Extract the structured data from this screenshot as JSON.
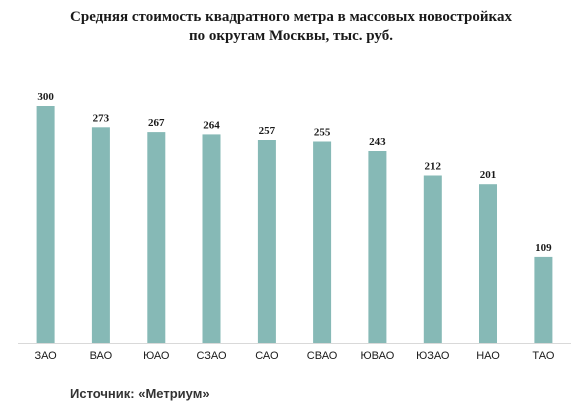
{
  "chart_data": {
    "type": "bar",
    "title_lines": [
      "Средняя стоимость  квадратного  метра в массовых новостройках",
      "по округам Москвы, тыс. руб."
    ],
    "categories": [
      "ЗАО",
      "ВАО",
      "ЮАО",
      "СЗАО",
      "САО",
      "СВАО",
      "ЮВАО",
      "ЮЗАО",
      "НАО",
      "ТАО"
    ],
    "values": [
      300,
      273,
      267,
      264,
      257,
      255,
      243,
      212,
      201,
      109
    ],
    "ylim": [
      0,
      300
    ],
    "grid": false,
    "legend": "none",
    "bar_color": "#86b9b6",
    "axis_color": "#d9d9d9"
  },
  "source": "Источник: «Метриум»"
}
